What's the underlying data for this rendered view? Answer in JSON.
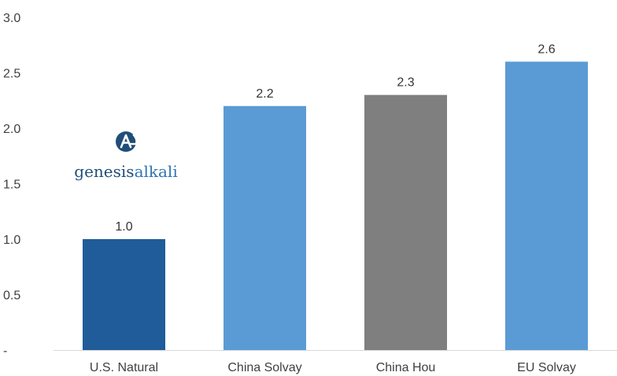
{
  "chart_data": {
    "type": "bar",
    "title": "",
    "xlabel": "",
    "ylabel": "",
    "categories": [
      "U.S. Natural",
      "China Solvay",
      "China Hou",
      "EU Solvay"
    ],
    "values": [
      1.0,
      2.2,
      2.3,
      2.6
    ],
    "data_labels": [
      "1.0",
      "2.2",
      "2.3",
      "2.6"
    ],
    "bar_colors": [
      "#1f5c99",
      "#5b9bd5",
      "#7f7f7f",
      "#5b9bd5"
    ],
    "ylim": [
      0,
      3.0
    ],
    "yticks": [
      0,
      0.5,
      1.0,
      1.5,
      2.0,
      2.5,
      3.0
    ],
    "ytick_labels": [
      "-",
      "0.5",
      "1.0",
      "1.5",
      "2.0",
      "2.5",
      "3.0"
    ],
    "grid": false,
    "legend": "none"
  },
  "logo": {
    "text_part1": "genesis",
    "text_part2": "alkali",
    "color_part1": "#1f4e79",
    "color_part2": "#2e75b6",
    "icon": "genesis-alkali-ga-icon"
  }
}
